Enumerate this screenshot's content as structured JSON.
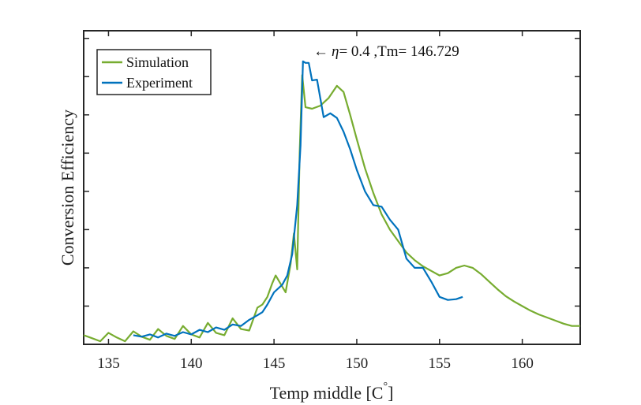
{
  "chart_data": {
    "type": "line",
    "title": "",
    "xlabel": "Temp middle [C",
    "xlabel_sup": "°",
    "xlabel_end": "]",
    "ylabel": "Conversion Efficiency",
    "xlim": [
      133.5,
      163.5
    ],
    "ylim": [
      0,
      0.41
    ],
    "xticks": [
      135,
      140,
      145,
      150,
      155,
      160
    ],
    "yticks": [
      0.05,
      0.1,
      0.15,
      0.2,
      0.25,
      0.3,
      0.35,
      0.4
    ],
    "grid": false,
    "legend_position": "top-left",
    "annotation": {
      "arrow": "←",
      "symbol": "η",
      "text": "= 0.4 ,Tm= 146.729",
      "x": 146.729,
      "y": 0.4
    },
    "series": [
      {
        "name": "Simulation",
        "color": "#77ac30",
        "points": [
          [
            133.5,
            0.012
          ],
          [
            134.0,
            0.008
          ],
          [
            134.5,
            0.004
          ],
          [
            135.0,
            0.015
          ],
          [
            135.5,
            0.009
          ],
          [
            136.0,
            0.004
          ],
          [
            136.5,
            0.017
          ],
          [
            137.0,
            0.01
          ],
          [
            137.5,
            0.006
          ],
          [
            138.0,
            0.02
          ],
          [
            138.5,
            0.011
          ],
          [
            139.0,
            0.007
          ],
          [
            139.5,
            0.024
          ],
          [
            140.0,
            0.013
          ],
          [
            140.5,
            0.009
          ],
          [
            141.0,
            0.028
          ],
          [
            141.5,
            0.015
          ],
          [
            142.0,
            0.012
          ],
          [
            142.5,
            0.034
          ],
          [
            143.0,
            0.02
          ],
          [
            143.5,
            0.018
          ],
          [
            144.0,
            0.048
          ],
          [
            144.3,
            0.052
          ],
          [
            144.6,
            0.062
          ],
          [
            144.9,
            0.08
          ],
          [
            145.1,
            0.09
          ],
          [
            145.7,
            0.068
          ],
          [
            146.0,
            0.105
          ],
          [
            146.2,
            0.145
          ],
          [
            146.4,
            0.098
          ],
          [
            146.55,
            0.25
          ],
          [
            146.7,
            0.352
          ],
          [
            146.9,
            0.31
          ],
          [
            147.3,
            0.308
          ],
          [
            147.8,
            0.312
          ],
          [
            148.3,
            0.322
          ],
          [
            148.8,
            0.338
          ],
          [
            149.2,
            0.33
          ],
          [
            149.6,
            0.3
          ],
          [
            150.0,
            0.268
          ],
          [
            150.5,
            0.23
          ],
          [
            151.0,
            0.198
          ],
          [
            151.5,
            0.17
          ],
          [
            152.0,
            0.15
          ],
          [
            152.5,
            0.135
          ],
          [
            153.0,
            0.12
          ],
          [
            153.5,
            0.11
          ],
          [
            154.0,
            0.102
          ],
          [
            154.5,
            0.096
          ],
          [
            155.0,
            0.09
          ],
          [
            155.5,
            0.093
          ],
          [
            156.0,
            0.1
          ],
          [
            156.5,
            0.103
          ],
          [
            157.0,
            0.1
          ],
          [
            157.5,
            0.092
          ],
          [
            158.0,
            0.082
          ],
          [
            158.5,
            0.072
          ],
          [
            159.0,
            0.063
          ],
          [
            159.5,
            0.056
          ],
          [
            160.0,
            0.05
          ],
          [
            160.5,
            0.044
          ],
          [
            161.0,
            0.039
          ],
          [
            161.5,
            0.035
          ],
          [
            162.0,
            0.031
          ],
          [
            162.5,
            0.027
          ],
          [
            163.0,
            0.024
          ],
          [
            163.5,
            0.024
          ]
        ]
      },
      {
        "name": "Experiment",
        "color": "#0072bd",
        "points": [
          [
            136.5,
            0.012
          ],
          [
            137.0,
            0.01
          ],
          [
            137.5,
            0.013
          ],
          [
            138.0,
            0.009
          ],
          [
            138.5,
            0.014
          ],
          [
            139.0,
            0.011
          ],
          [
            139.5,
            0.016
          ],
          [
            140.0,
            0.013
          ],
          [
            140.5,
            0.019
          ],
          [
            141.0,
            0.016
          ],
          [
            141.5,
            0.022
          ],
          [
            142.0,
            0.019
          ],
          [
            142.5,
            0.026
          ],
          [
            143.0,
            0.024
          ],
          [
            143.5,
            0.032
          ],
          [
            144.0,
            0.038
          ],
          [
            144.3,
            0.042
          ],
          [
            144.6,
            0.052
          ],
          [
            145.0,
            0.068
          ],
          [
            145.5,
            0.078
          ],
          [
            145.8,
            0.09
          ],
          [
            146.1,
            0.118
          ],
          [
            146.4,
            0.182
          ],
          [
            146.6,
            0.26
          ],
          [
            146.75,
            0.37
          ],
          [
            146.9,
            0.368
          ],
          [
            147.1,
            0.368
          ],
          [
            147.3,
            0.345
          ],
          [
            147.6,
            0.346
          ],
          [
            148.0,
            0.297
          ],
          [
            148.4,
            0.302
          ],
          [
            148.8,
            0.296
          ],
          [
            149.2,
            0.278
          ],
          [
            149.6,
            0.255
          ],
          [
            150.0,
            0.228
          ],
          [
            150.5,
            0.2
          ],
          [
            151.0,
            0.182
          ],
          [
            151.5,
            0.18
          ],
          [
            152.0,
            0.163
          ],
          [
            152.5,
            0.15
          ],
          [
            153.0,
            0.112
          ],
          [
            153.5,
            0.1
          ],
          [
            154.0,
            0.1
          ],
          [
            154.5,
            0.082
          ],
          [
            155.0,
            0.062
          ],
          [
            155.5,
            0.058
          ],
          [
            156.0,
            0.059
          ],
          [
            156.4,
            0.062
          ]
        ]
      }
    ]
  }
}
